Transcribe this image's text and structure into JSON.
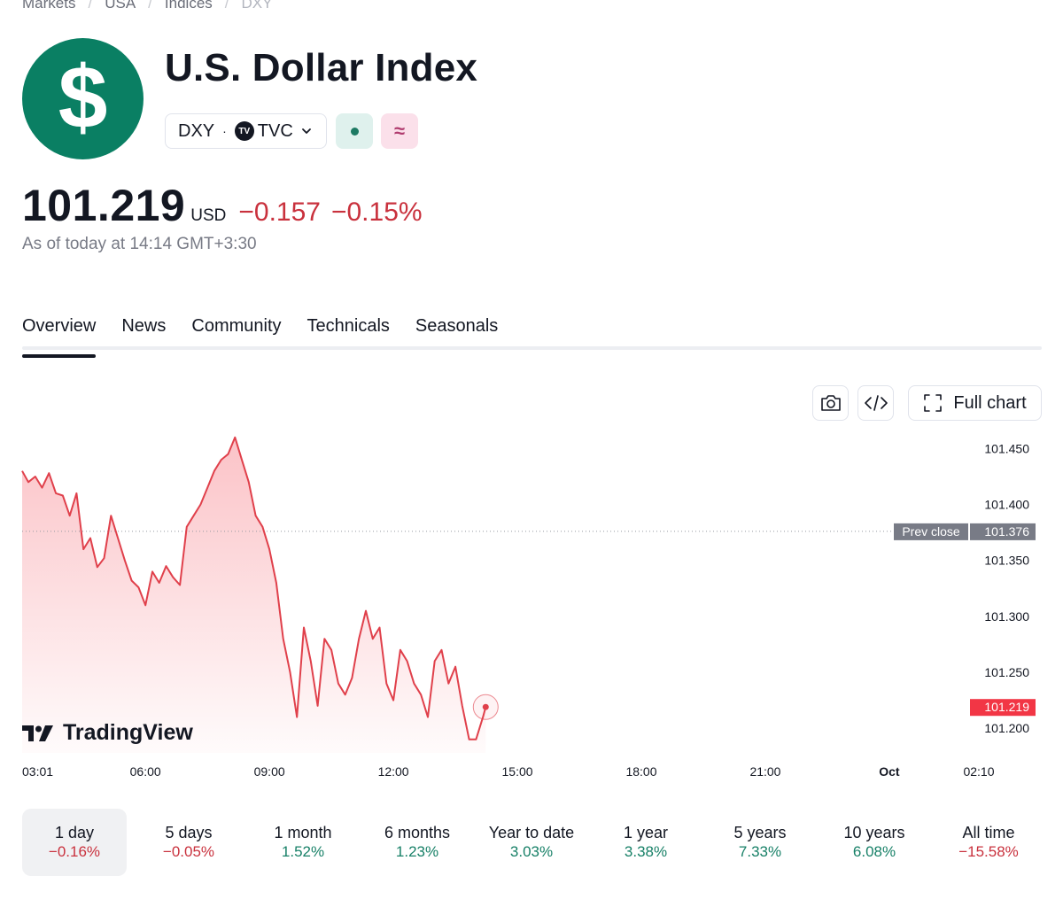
{
  "breadcrumb": [
    "Markets",
    "USA",
    "Indices",
    "DXY"
  ],
  "logo": {
    "glyph": "$",
    "color": "#0a7f63"
  },
  "title": "U.S. Dollar Index",
  "symbol": {
    "ticker": "DXY",
    "separator": "·",
    "exchange_badge": "TV",
    "exchange": "TVC",
    "chevron_icon": "chevron-down-icon"
  },
  "status": {
    "market_icon": "market-status-dot-icon",
    "delay_icon": "approx-icon",
    "delay_glyph": "≈"
  },
  "quote": {
    "price": "101.219",
    "currency": "USD",
    "change": "−0.157",
    "change_pct": "−0.15%",
    "as_of": "As of today at 14:14 GMT+3:30",
    "negative_color": "#c9313d",
    "positive_color": "#178067"
  },
  "tabs": [
    {
      "label": "Overview",
      "active": true
    },
    {
      "label": "News",
      "active": false
    },
    {
      "label": "Community",
      "active": false
    },
    {
      "label": "Technicals",
      "active": false
    },
    {
      "label": "Seasonals",
      "active": false
    }
  ],
  "toolbar": {
    "snapshot_icon": "camera-icon",
    "embed_icon": "code-icon",
    "full_chart_label": "Full chart",
    "full_chart_icon": "fullscreen-icon"
  },
  "watermark": "TradingView",
  "chart_data": {
    "type": "area",
    "title": "",
    "xlabel": "",
    "ylabel": "",
    "x_ticks": [
      "03:01",
      "06:00",
      "09:00",
      "12:00",
      "15:00",
      "18:00",
      "21:00",
      "Oct",
      "02:10"
    ],
    "y_ticks": [
      101.45,
      101.4,
      101.35,
      101.3,
      101.25,
      101.2
    ],
    "ylim": [
      101.178,
      101.463
    ],
    "grid": false,
    "line_color": "#e0404b",
    "prev_close": {
      "label": "Prev close",
      "value": 101.376
    },
    "last": {
      "label": "101.219",
      "value": 101.219,
      "time": "14:14"
    },
    "series": [
      {
        "x": [
          "03:01",
          "03:10",
          "03:20",
          "03:30",
          "03:40",
          "03:50",
          "04:00",
          "04:10",
          "04:20",
          "04:30",
          "04:40",
          "04:50",
          "05:00",
          "05:10",
          "05:20",
          "05:30",
          "05:40",
          "05:50",
          "06:00",
          "06:10",
          "06:20",
          "06:30",
          "06:40",
          "06:50",
          "07:00",
          "07:10",
          "07:20",
          "07:30",
          "07:40",
          "07:50",
          "08:00",
          "08:10",
          "08:20",
          "08:30",
          "08:40",
          "08:50",
          "09:00",
          "09:10",
          "09:20",
          "09:30",
          "09:40",
          "09:50",
          "10:00",
          "10:10",
          "10:20",
          "10:30",
          "10:40",
          "10:50",
          "11:00",
          "11:10",
          "11:20",
          "11:30",
          "11:40",
          "11:50",
          "12:00",
          "12:10",
          "12:20",
          "12:30",
          "12:40",
          "12:50",
          "13:00",
          "13:10",
          "13:20",
          "13:30",
          "13:40",
          "13:50",
          "14:00",
          "14:05",
          "14:10",
          "14:14"
        ],
        "values": [
          101.43,
          101.42,
          101.425,
          101.415,
          101.428,
          101.41,
          101.408,
          101.39,
          101.41,
          101.36,
          101.37,
          101.344,
          101.352,
          101.39,
          101.37,
          101.35,
          101.332,
          101.326,
          101.31,
          101.34,
          101.33,
          101.345,
          101.335,
          101.328,
          101.38,
          101.39,
          101.4,
          101.415,
          101.43,
          101.44,
          101.445,
          101.46,
          101.44,
          101.42,
          101.39,
          101.38,
          101.36,
          101.33,
          101.28,
          101.25,
          101.21,
          101.29,
          101.26,
          101.22,
          101.28,
          101.27,
          101.24,
          101.23,
          101.245,
          101.28,
          101.305,
          101.28,
          101.29,
          101.24,
          101.225,
          101.27,
          101.26,
          101.24,
          101.23,
          101.21,
          101.26,
          101.27,
          101.24,
          101.255,
          101.22,
          101.19,
          101.19,
          101.2,
          101.21,
          101.219
        ]
      }
    ]
  },
  "periods": [
    {
      "label": "1 day",
      "value": "−0.16%",
      "trend": "neg",
      "active": true
    },
    {
      "label": "5 days",
      "value": "−0.05%",
      "trend": "neg",
      "active": false
    },
    {
      "label": "1 month",
      "value": "1.52%",
      "trend": "pos",
      "active": false
    },
    {
      "label": "6 months",
      "value": "1.23%",
      "trend": "pos",
      "active": false
    },
    {
      "label": "Year to date",
      "value": "3.03%",
      "trend": "pos",
      "active": false
    },
    {
      "label": "1 year",
      "value": "3.38%",
      "trend": "pos",
      "active": false
    },
    {
      "label": "5 years",
      "value": "7.33%",
      "trend": "pos",
      "active": false
    },
    {
      "label": "10 years",
      "value": "6.08%",
      "trend": "pos",
      "active": false
    },
    {
      "label": "All time",
      "value": "−15.58%",
      "trend": "neg",
      "active": false
    }
  ]
}
